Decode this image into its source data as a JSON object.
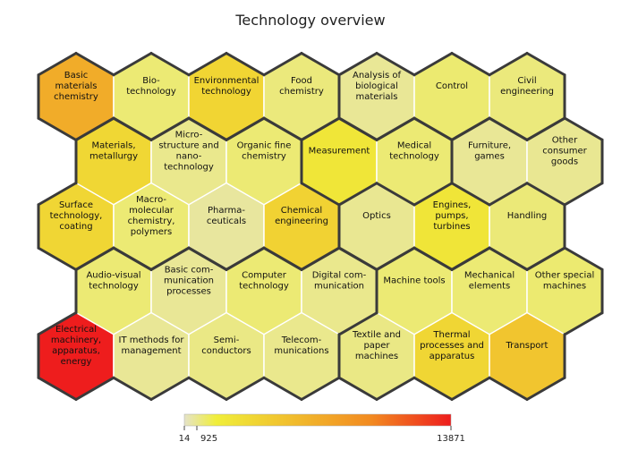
{
  "chart_data": {
    "type": "hexagonal heatmap",
    "title": "Technology overview",
    "scale": {
      "min": 14,
      "max": 13871,
      "min_label": "14",
      "mid_label": "925",
      "max_label": "13871",
      "colors": [
        "#e5e3c8",
        "#f0ee3a",
        "#f28a20",
        "#ee1d1d"
      ]
    },
    "cells": [
      {
        "row": 0,
        "col": 0,
        "lines": [
          "Basic",
          "materials",
          "chemistry"
        ],
        "value": 7000
      },
      {
        "row": 0,
        "col": 1,
        "lines": [
          "Bio-",
          "technology"
        ],
        "value": 1000
      },
      {
        "row": 0,
        "col": 2,
        "lines": [
          "Environmental",
          "technology"
        ],
        "value": 3700
      },
      {
        "row": 0,
        "col": 3,
        "lines": [
          "Food",
          "chemistry"
        ],
        "value": 900
      },
      {
        "row": 0,
        "col": 4,
        "lines": [
          "Analysis of",
          "biological",
          "materials"
        ],
        "value": 600
      },
      {
        "row": 0,
        "col": 5,
        "lines": [
          "Control"
        ],
        "value": 1050
      },
      {
        "row": 0,
        "col": 6,
        "lines": [
          "Civil",
          "engineering"
        ],
        "value": 900
      },
      {
        "row": 1,
        "col": 0,
        "lines": [
          "Materials,",
          "metallurgy"
        ],
        "value": 3500
      },
      {
        "row": 1,
        "col": 1,
        "lines": [
          "Micro-",
          "structure and",
          "nano-",
          "technology"
        ],
        "value": 700
      },
      {
        "row": 1,
        "col": 2,
        "lines": [
          "Organic fine",
          "chemistry"
        ],
        "value": 1000
      },
      {
        "row": 1,
        "col": 3,
        "lines": [
          "Measurement"
        ],
        "value": 2300
      },
      {
        "row": 1,
        "col": 4,
        "lines": [
          "Medical",
          "technology"
        ],
        "value": 1000
      },
      {
        "row": 1,
        "col": 5,
        "lines": [
          "Furniture,",
          "games"
        ],
        "value": 600
      },
      {
        "row": 1,
        "col": 6,
        "lines": [
          "Other",
          "consumer",
          "goods"
        ],
        "value": 650
      },
      {
        "row": 2,
        "col": 0,
        "lines": [
          "Surface",
          "technology,",
          "coating"
        ],
        "value": 3600
      },
      {
        "row": 2,
        "col": 1,
        "lines": [
          "Macro-",
          "molecular",
          "chemistry,",
          "polymers"
        ],
        "value": 1000
      },
      {
        "row": 2,
        "col": 2,
        "lines": [
          "Pharma-",
          "ceuticals"
        ],
        "value": 500
      },
      {
        "row": 2,
        "col": 3,
        "lines": [
          "Chemical",
          "engineering"
        ],
        "value": 3900
      },
      {
        "row": 2,
        "col": 4,
        "lines": [
          "Optics"
        ],
        "value": 650
      },
      {
        "row": 2,
        "col": 5,
        "lines": [
          "Engines,",
          "pumps,",
          "turbines"
        ],
        "value": 2400
      },
      {
        "row": 2,
        "col": 6,
        "lines": [
          "Handling"
        ],
        "value": 950
      },
      {
        "row": 3,
        "col": 0,
        "lines": [
          "Audio-visual",
          "technology"
        ],
        "value": 1000
      },
      {
        "row": 3,
        "col": 1,
        "lines": [
          "Basic com-",
          "munication",
          "processes"
        ],
        "value": 600
      },
      {
        "row": 3,
        "col": 2,
        "lines": [
          "Computer",
          "technology"
        ],
        "value": 1000
      },
      {
        "row": 3,
        "col": 3,
        "lines": [
          "Digital com-",
          "munication"
        ],
        "value": 700
      },
      {
        "row": 3,
        "col": 4,
        "lines": [
          "Machine tools"
        ],
        "value": 1000
      },
      {
        "row": 3,
        "col": 5,
        "lines": [
          "Mechanical",
          "elements"
        ],
        "value": 1000
      },
      {
        "row": 3,
        "col": 6,
        "lines": [
          "Other special",
          "machines"
        ],
        "value": 1050
      },
      {
        "row": 4,
        "col": 0,
        "lines": [
          "Electrical",
          "machinery,",
          "apparatus,",
          "energy"
        ],
        "value": 13871
      },
      {
        "row": 4,
        "col": 1,
        "lines": [
          "IT methods for",
          "management"
        ],
        "value": 600
      },
      {
        "row": 4,
        "col": 2,
        "lines": [
          "Semi-",
          "conductors"
        ],
        "value": 800
      },
      {
        "row": 4,
        "col": 3,
        "lines": [
          "Telecom-",
          "munications"
        ],
        "value": 700
      },
      {
        "row": 4,
        "col": 4,
        "lines": [
          "Textile and",
          "paper",
          "machines"
        ],
        "value": 800
      },
      {
        "row": 4,
        "col": 5,
        "lines": [
          "Thermal",
          "processes and",
          "apparatus"
        ],
        "value": 3600
      },
      {
        "row": 4,
        "col": 6,
        "lines": [
          "Transport"
        ],
        "value": 5000
      }
    ],
    "groups": [
      [
        "0,0",
        "0,1",
        "0,2",
        "0,3",
        "1,0",
        "1,1",
        "1,2",
        "2,0",
        "2,1",
        "2,2",
        "2,3"
      ],
      [
        "0,4",
        "0,5",
        "0,6",
        "1,3",
        "1,4"
      ],
      [
        "1,5",
        "1,6"
      ],
      [
        "2,4",
        "2,5",
        "2,6",
        "3,4",
        "3,5",
        "3,6",
        "4,4",
        "4,5",
        "4,6"
      ],
      [
        "3,0",
        "3,1",
        "3,2",
        "3,3",
        "4,0",
        "4,1",
        "4,2",
        "4,3"
      ]
    ]
  }
}
